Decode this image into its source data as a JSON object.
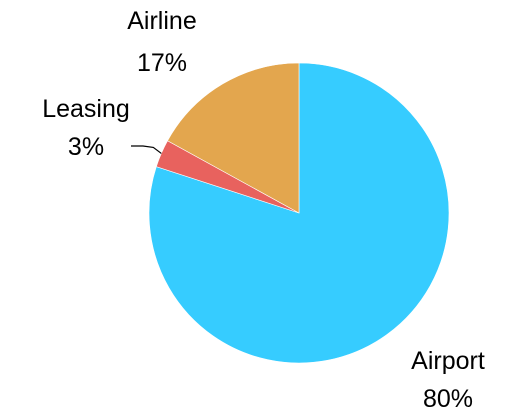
{
  "chart_data": {
    "type": "pie",
    "title": "",
    "slices": [
      {
        "name": "Airport",
        "percent_label": "80%",
        "value": 80,
        "color": "#36CCFF"
      },
      {
        "name": "Leasing",
        "percent_label": "3%",
        "value": 3,
        "color": "#E8625E"
      },
      {
        "name": "Airline",
        "percent_label": "17%",
        "value": 17,
        "color": "#E3A64E"
      }
    ],
    "start_angle_deg": 0,
    "direction": "clockwise",
    "legend": "none"
  }
}
